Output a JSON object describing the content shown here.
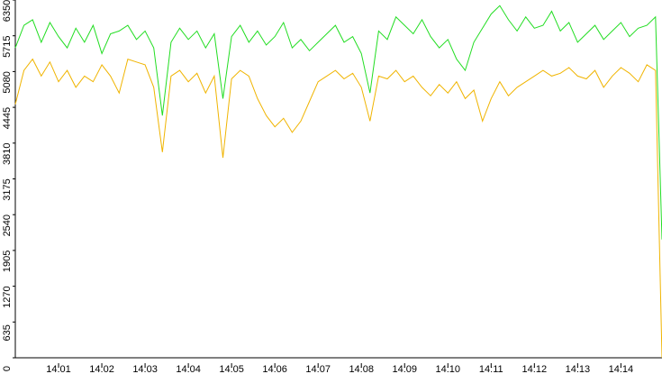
{
  "chart_data": {
    "type": "line",
    "x": [
      0,
      0.2,
      0.4,
      0.6,
      0.8,
      1,
      1.2,
      1.4,
      1.6,
      1.8,
      2,
      2.2,
      2.4,
      2.6,
      2.8,
      3,
      3.2,
      3.4,
      3.6,
      3.8,
      4,
      4.2,
      4.4,
      4.6,
      4.8,
      5,
      5.2,
      5.4,
      5.6,
      5.8,
      6,
      6.2,
      6.4,
      6.6,
      6.8,
      7,
      7.2,
      7.4,
      7.6,
      7.8,
      8,
      8.2,
      8.4,
      8.6,
      8.8,
      9,
      9.2,
      9.4,
      9.6,
      9.8,
      10,
      10.2,
      10.4,
      10.6,
      10.8,
      11,
      11.2,
      11.4,
      11.6,
      11.8,
      12,
      12.2,
      12.4,
      12.6,
      12.8,
      13,
      13.2,
      13.4,
      13.6,
      13.8,
      14,
      14.2,
      14.4,
      14.6,
      14.8,
      14.95
    ],
    "series": [
      {
        "color": "#22dd22",
        "values": [
          5500,
          5900,
          6000,
          5600,
          5950,
          5700,
          5500,
          5850,
          5600,
          5900,
          5400,
          5750,
          5800,
          5900,
          5650,
          5800,
          5500,
          4300,
          5600,
          5850,
          5650,
          5800,
          5500,
          5750,
          4600,
          5700,
          5900,
          5600,
          5800,
          5550,
          5700,
          5950,
          5500,
          5650,
          5450,
          5600,
          5750,
          5900,
          5600,
          5700,
          5400,
          4700,
          5800,
          5650,
          6050,
          5900,
          5750,
          6000,
          5700,
          5500,
          5650,
          5300,
          5100,
          5600,
          5850,
          6100,
          6250,
          6000,
          5800,
          6050,
          5850,
          5900,
          6150,
          5800,
          5950,
          5600,
          5750,
          5900,
          5650,
          5800,
          5950,
          5700,
          5850,
          5900,
          6050,
          2100
        ]
      },
      {
        "color": "#f0b400",
        "values": [
          4500,
          5100,
          5300,
          5000,
          5250,
          4900,
          5100,
          4800,
          5000,
          4900,
          5200,
          5000,
          4700,
          5300,
          5250,
          5200,
          4800,
          3650,
          5000,
          5100,
          4900,
          5050,
          4700,
          5000,
          3550,
          4950,
          5100,
          5000,
          4600,
          4300,
          4100,
          4250,
          4000,
          4200,
          4550,
          4900,
          5000,
          5100,
          4950,
          5050,
          4800,
          4200,
          5000,
          4950,
          5100,
          4900,
          5000,
          4800,
          4650,
          4850,
          4700,
          4900,
          4600,
          4750,
          4200,
          4600,
          4900,
          4650,
          4800,
          4900,
          5000,
          5100,
          5000,
          5050,
          5150,
          5000,
          4950,
          5100,
          4800,
          5000,
          5150,
          5050,
          4900,
          5200,
          5100,
          0
        ]
      }
    ],
    "xlim": [
      0,
      14.95
    ],
    "xticks": [
      {
        "value": 1,
        "label": "14:01"
      },
      {
        "value": 2,
        "label": "14:02"
      },
      {
        "value": 3,
        "label": "14:03"
      },
      {
        "value": 4,
        "label": "14:04"
      },
      {
        "value": 5,
        "label": "14:05"
      },
      {
        "value": 6,
        "label": "14:06"
      },
      {
        "value": 7,
        "label": "14:07"
      },
      {
        "value": 8,
        "label": "14:08"
      },
      {
        "value": 9,
        "label": "14:09"
      },
      {
        "value": 10,
        "label": "14:10"
      },
      {
        "value": 11,
        "label": "14:11"
      },
      {
        "value": 12,
        "label": "14:12"
      },
      {
        "value": 13,
        "label": "14:13"
      },
      {
        "value": 14,
        "label": "14:14"
      }
    ],
    "ylim": [
      0,
      6350
    ],
    "yticks": [
      0,
      635,
      1270,
      1905,
      2540,
      3175,
      3810,
      4445,
      5080,
      5715,
      6350
    ]
  }
}
